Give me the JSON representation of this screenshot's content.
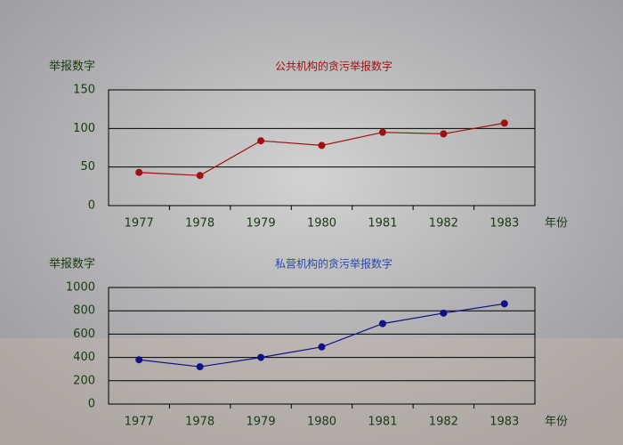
{
  "chart_data": [
    {
      "type": "line",
      "title": "公共机构的贪污举报数字",
      "title_color": "#a01010",
      "y_label": "举报数字",
      "x_label": "年份",
      "categories": [
        "1977",
        "1978",
        "1979",
        "1980",
        "1981",
        "1982",
        "1983"
      ],
      "values": [
        43,
        39,
        84,
        78,
        95,
        93,
        107
      ],
      "color": "#a01010",
      "ylim": [
        0,
        150
      ],
      "yticks": [
        0,
        50,
        100,
        150
      ],
      "grid": true
    },
    {
      "type": "line",
      "title": "私营机构的贪污举报数字",
      "title_color": "#2848a8",
      "y_label": "举报数字",
      "x_label": "年份",
      "categories": [
        "1977",
        "1978",
        "1979",
        "1980",
        "1981",
        "1982",
        "1983"
      ],
      "values": [
        380,
        320,
        400,
        490,
        690,
        780,
        860
      ],
      "color": "#10108a",
      "ylim": [
        0,
        1000
      ],
      "yticks": [
        0,
        200,
        400,
        600,
        800,
        1000
      ],
      "grid": true
    }
  ]
}
